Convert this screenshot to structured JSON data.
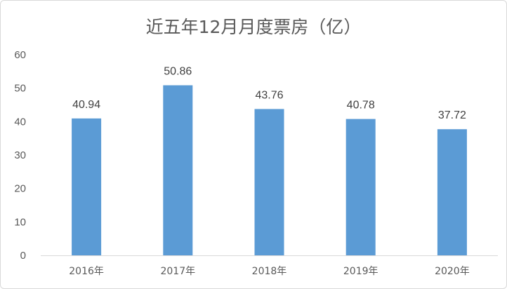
{
  "chart_data": {
    "type": "bar",
    "title": "近五年12月月度票房（亿）",
    "xlabel": "",
    "ylabel": "",
    "categories": [
      "2016年",
      "2017年",
      "2018年",
      "2019年",
      "2020年"
    ],
    "values": [
      40.94,
      50.86,
      43.76,
      40.78,
      37.72
    ],
    "data_labels": [
      "40.94",
      "50.86",
      "43.76",
      "40.78",
      "37.72"
    ],
    "y_ticks": [
      "0",
      "10",
      "20",
      "30",
      "40",
      "50",
      "60"
    ],
    "ylim": [
      0,
      60
    ],
    "grid": false,
    "legend": "none",
    "bar_color": "#5b9bd5"
  }
}
